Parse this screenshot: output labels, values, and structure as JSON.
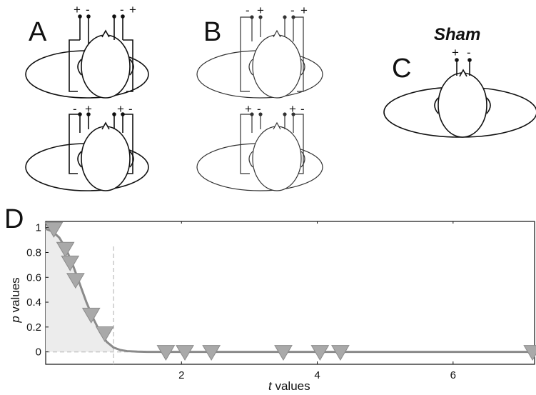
{
  "panels": {
    "a": {
      "letter": "A",
      "top_left": [
        "+",
        "-"
      ],
      "top_right": [
        "-",
        "+"
      ],
      "bottom_left": [
        "-",
        "+"
      ],
      "bottom_right": [
        "+",
        "-"
      ]
    },
    "b": {
      "letter": "B",
      "top_left": [
        "-",
        "+"
      ],
      "top_right": [
        "-",
        "+"
      ],
      "bottom_left": [
        "+",
        "-"
      ],
      "bottom_right": [
        "+",
        "-"
      ]
    },
    "c": {
      "letter": "C",
      "title": "Sham",
      "polarity": [
        "+",
        "-"
      ]
    },
    "d": {
      "letter": "D"
    }
  },
  "colors": {
    "line": "#111111",
    "curve": "#8a8a8a",
    "marker": "#a9a9a9",
    "shade": "#ececec",
    "dashed": "#c8c8c8"
  },
  "chart_data": {
    "type": "scatter",
    "xlabel": "t values",
    "ylabel": "p values",
    "xlim": [
      0,
      7.2
    ],
    "ylim": [
      -0.1,
      1.05
    ],
    "x_ticks": [
      2,
      4,
      6
    ],
    "y_ticks": [
      0,
      0.2,
      0.4,
      0.6,
      0.8,
      1
    ],
    "threshold_t": 1.0,
    "curve": {
      "x": [
        0,
        0.1,
        0.2,
        0.3,
        0.4,
        0.5,
        0.6,
        0.7,
        0.8,
        0.9,
        1.0,
        1.1,
        1.2,
        1.35,
        1.5,
        2,
        3,
        4,
        5,
        6,
        7.2
      ],
      "y": [
        0.99,
        0.97,
        0.92,
        0.83,
        0.7,
        0.55,
        0.4,
        0.27,
        0.16,
        0.08,
        0.035,
        0.015,
        0.006,
        0.002,
        0.0,
        0.0,
        0.0,
        0.0,
        0.0,
        0.0,
        0.0
      ]
    },
    "points": {
      "x": [
        0.12,
        0.29,
        0.36,
        0.44,
        0.67,
        0.87,
        1.77,
        2.05,
        2.44,
        3.5,
        4.04,
        4.34,
        7.17
      ],
      "y": [
        0.99,
        0.83,
        0.72,
        0.58,
        0.3,
        0.15,
        0.0,
        0.0,
        0.0,
        0.0,
        0.0,
        0.0,
        0.0
      ]
    }
  }
}
